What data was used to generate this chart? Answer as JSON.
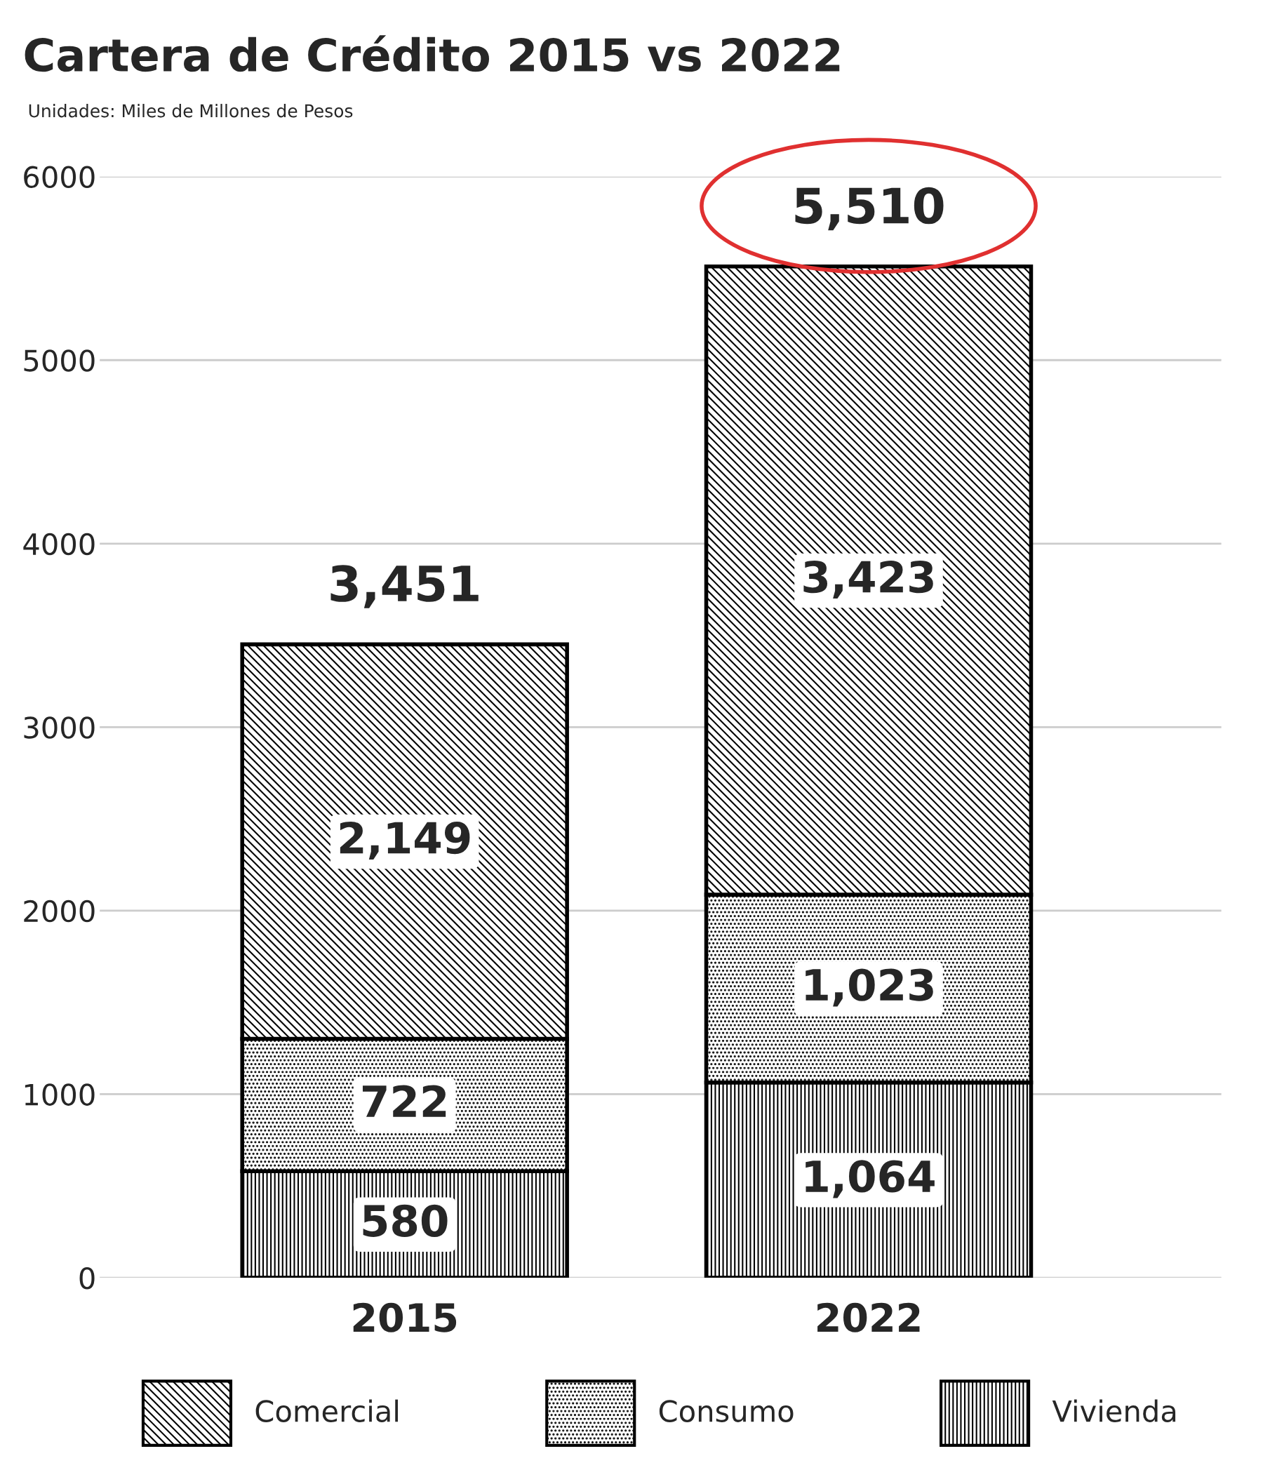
{
  "chart_data": {
    "type": "bar",
    "title": "Cartera de Crédito 2015 vs 2022",
    "subtitle": "Unidades: Miles de Millones de Pesos",
    "categories": [
      "2015",
      "2022"
    ],
    "stacked": true,
    "series": [
      {
        "name": "Vivienda",
        "color": "#000000",
        "values": [
          580,
          1064
        ],
        "value_labels": [
          "580",
          "1,064"
        ]
      },
      {
        "name": "Consumo",
        "color": "#000000",
        "values": [
          722,
          1023
        ],
        "value_labels": [
          "722",
          "1,023"
        ]
      },
      {
        "name": "Comercial",
        "color": "#000000",
        "values": [
          2149,
          3423
        ],
        "value_labels": [
          "2,149",
          "3,423"
        ]
      }
    ],
    "totals": [
      "3,451",
      "5,510"
    ],
    "ylim": [
      0,
      6000
    ],
    "yticks": [
      0,
      1000,
      2000,
      3000,
      4000,
      5000,
      6000
    ],
    "grid": "y",
    "legend": "bottom"
  }
}
